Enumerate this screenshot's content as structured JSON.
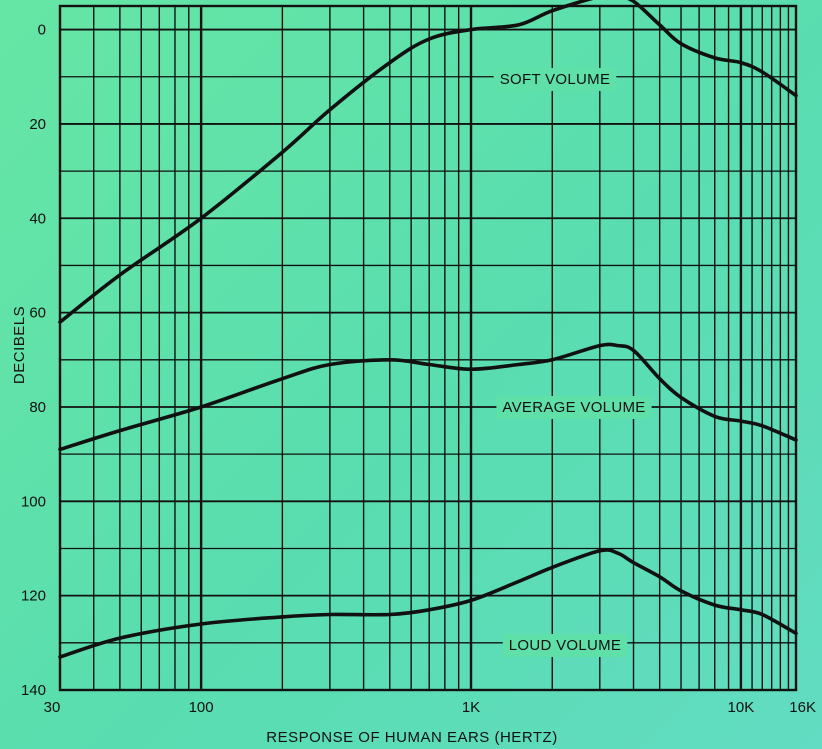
{
  "chart_data": {
    "type": "line",
    "title": "",
    "xlabel": "RESPONSE OF HUMAN EARS (HERTZ)",
    "ylabel": "DECIBELS",
    "x_scale": "log",
    "y_inverted": true,
    "xlim": [
      30,
      16000
    ],
    "ylim": [
      -5,
      140
    ],
    "grid": true,
    "legend": "none",
    "colors": {
      "background": "#5fe0a8",
      "grid": "#111111",
      "line": "#111111"
    },
    "x_ticks": [
      {
        "value": 30,
        "label": "30"
      },
      {
        "value": 100,
        "label": "100"
      },
      {
        "value": 1000,
        "label": "1K"
      },
      {
        "value": 10000,
        "label": "10K"
      },
      {
        "value": 16000,
        "label": "16K"
      }
    ],
    "y_ticks": [
      {
        "value": 0,
        "label": "0"
      },
      {
        "value": 20,
        "label": "20"
      },
      {
        "value": 40,
        "label": "40"
      },
      {
        "value": 60,
        "label": "60"
      },
      {
        "value": 80,
        "label": "80"
      },
      {
        "value": 100,
        "label": "100"
      },
      {
        "value": 120,
        "label": "120"
      },
      {
        "value": 140,
        "label": "140"
      }
    ],
    "series": [
      {
        "name": "SOFT VOLUME",
        "points": [
          [
            30,
            62
          ],
          [
            50,
            52
          ],
          [
            100,
            40
          ],
          [
            200,
            26
          ],
          [
            300,
            17
          ],
          [
            500,
            7
          ],
          [
            700,
            2
          ],
          [
            1000,
            0
          ],
          [
            1500,
            -1
          ],
          [
            2000,
            -4
          ],
          [
            3000,
            -7
          ],
          [
            3500,
            -7
          ],
          [
            4000,
            -6
          ],
          [
            5000,
            -1
          ],
          [
            6000,
            3
          ],
          [
            8000,
            6
          ],
          [
            10000,
            7
          ],
          [
            12000,
            9
          ],
          [
            16000,
            14
          ]
        ]
      },
      {
        "name": "AVERAGE VOLUME",
        "points": [
          [
            30,
            89
          ],
          [
            50,
            85
          ],
          [
            100,
            80
          ],
          [
            200,
            74
          ],
          [
            300,
            71
          ],
          [
            500,
            70
          ],
          [
            700,
            71
          ],
          [
            1000,
            72
          ],
          [
            1500,
            71
          ],
          [
            2000,
            70
          ],
          [
            3000,
            67
          ],
          [
            3500,
            67
          ],
          [
            4000,
            68
          ],
          [
            5000,
            74
          ],
          [
            6000,
            78
          ],
          [
            8000,
            82
          ],
          [
            10000,
            83
          ],
          [
            12000,
            84
          ],
          [
            16000,
            87
          ]
        ]
      },
      {
        "name": "LOUD VOLUME",
        "points": [
          [
            30,
            133
          ],
          [
            50,
            129
          ],
          [
            100,
            126
          ],
          [
            200,
            124.5
          ],
          [
            300,
            124
          ],
          [
            500,
            124
          ],
          [
            700,
            123
          ],
          [
            1000,
            121
          ],
          [
            1500,
            117
          ],
          [
            2000,
            114
          ],
          [
            3000,
            110.5
          ],
          [
            3500,
            111
          ],
          [
            4000,
            113
          ],
          [
            5000,
            116
          ],
          [
            6000,
            119
          ],
          [
            8000,
            122
          ],
          [
            10000,
            123
          ],
          [
            12000,
            124
          ],
          [
            16000,
            128
          ]
        ]
      }
    ]
  }
}
